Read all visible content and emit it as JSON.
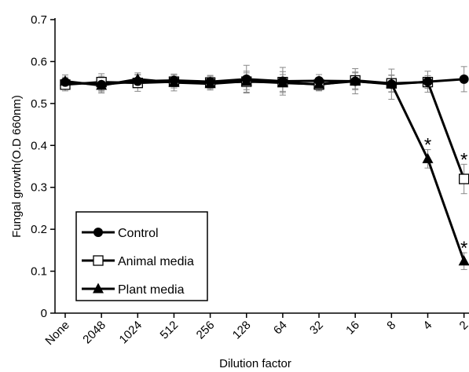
{
  "chart_data": {
    "type": "line",
    "xlabel": "Dilution factor",
    "ylabel": "Fungal growth(O.D 660nm)",
    "categories": [
      "None",
      "2048",
      "1024",
      "512",
      "256",
      "128",
      "64",
      "32",
      "16",
      "8",
      "4",
      "2"
    ],
    "ylim": [
      0,
      0.7
    ],
    "yticks": [
      "0",
      "0.1",
      "0.2",
      "0.3",
      "0.4",
      "0.5",
      "0.6",
      "0.7"
    ],
    "grid": false,
    "legend_position": "bottom-left",
    "series": [
      {
        "name": "Control",
        "marker": "circle-filled",
        "values": [
          0.551,
          0.545,
          0.553,
          0.555,
          0.552,
          0.558,
          0.553,
          0.554,
          0.553,
          0.546,
          0.552,
          0.558
        ],
        "errors": [
          0.012,
          0.02,
          0.015,
          0.015,
          0.015,
          0.033,
          0.033,
          0.015,
          0.03,
          0.036,
          0.025,
          0.03
        ]
      },
      {
        "name": "Animal media",
        "marker": "square-open",
        "values": [
          0.545,
          0.551,
          0.549,
          0.552,
          0.55,
          0.552,
          0.551,
          0.545,
          0.555,
          0.548,
          0.551,
          0.32
        ],
        "errors": [
          0.015,
          0.02,
          0.02,
          0.015,
          0.015,
          0.025,
          0.025,
          0.015,
          0.02,
          0.02,
          0.015,
          0.035
        ]
      },
      {
        "name": "Plant media",
        "marker": "triangle-filled",
        "values": [
          0.553,
          0.543,
          0.558,
          0.55,
          0.547,
          0.553,
          0.549,
          0.546,
          0.553,
          0.547,
          0.368,
          0.124
        ],
        "errors": [
          0.015,
          0.015,
          0.015,
          0.02,
          0.015,
          0.02,
          0.02,
          0.015,
          0.02,
          0.02,
          0.022,
          0.02
        ]
      }
    ],
    "annotations": [
      {
        "text": "*",
        "category": "4",
        "series": "Plant media"
      },
      {
        "text": "*",
        "category": "2",
        "series": "Animal media"
      },
      {
        "text": "*",
        "category": "2",
        "series": "Plant media"
      }
    ]
  }
}
